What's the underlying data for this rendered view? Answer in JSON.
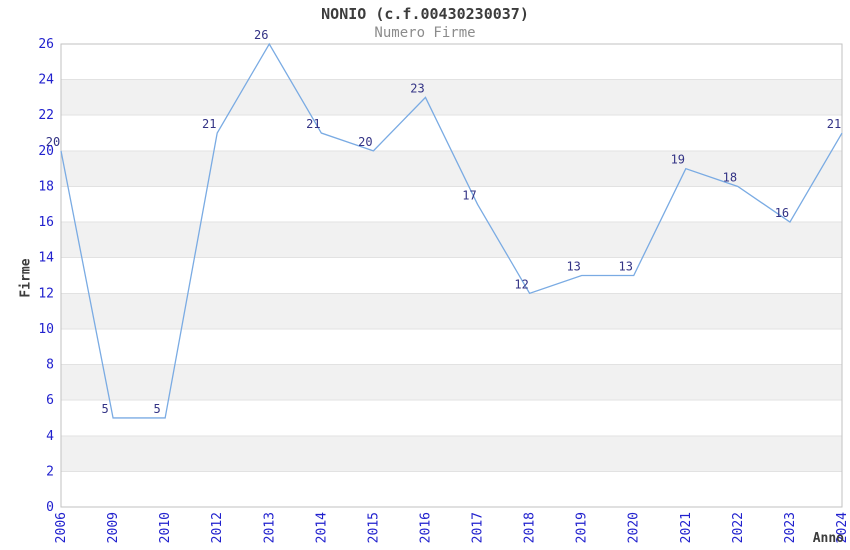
{
  "chart_data": {
    "type": "line",
    "title": "NONIO (c.f.00430230037)",
    "subtitle": "Numero Firme",
    "xlabel": "Anno",
    "ylabel": "Firme",
    "categories": [
      "2006",
      "2009",
      "2010",
      "2012",
      "2013",
      "2014",
      "2015",
      "2016",
      "2017",
      "2018",
      "2019",
      "2020",
      "2021",
      "2022",
      "2023",
      "2024"
    ],
    "values": [
      20,
      5,
      5,
      21,
      26,
      21,
      20,
      23,
      17,
      12,
      13,
      13,
      19,
      18,
      16,
      21
    ],
    "ylim": [
      0,
      26
    ],
    "ytick_step": 2,
    "yticks": [
      0,
      2,
      4,
      6,
      8,
      10,
      12,
      14,
      16,
      18,
      20,
      22,
      24,
      26
    ],
    "grid": "horizontal-bands-alternating",
    "legend": "none",
    "colors": {
      "line": "#7aabe3",
      "tick_label": "#2121ce",
      "data_label": "#333385",
      "band_fill": "#f1f1f1",
      "gridline": "#e2e2e2",
      "plot_border": "#c2c2c2",
      "title": "#3c3c3c",
      "subtitle": "#8c8c8c",
      "axis_title": "#3c3c3c",
      "background": "#ffffff"
    }
  }
}
